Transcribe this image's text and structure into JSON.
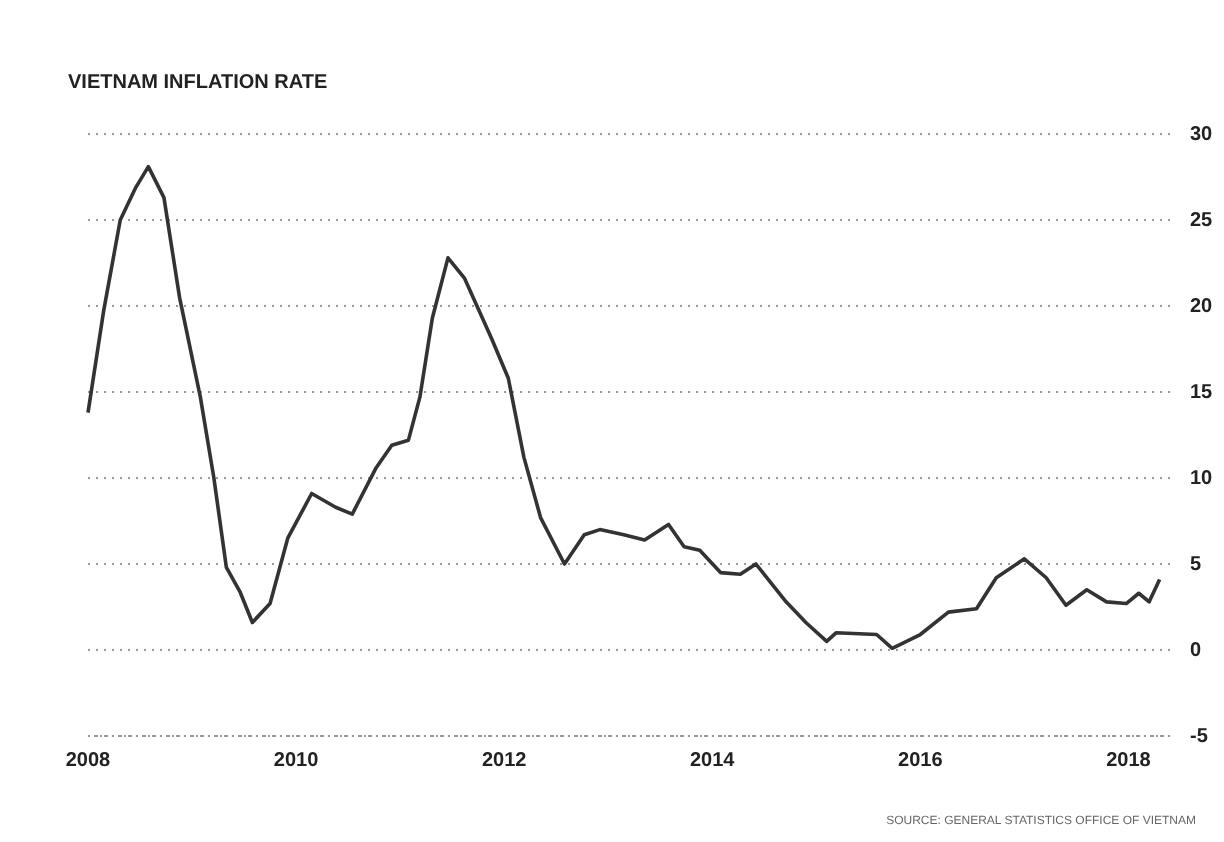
{
  "chart_data": {
    "type": "line",
    "title": "VIETNAM INFLATION RATE",
    "annotations": [
      "SOURCE: GENERAL STATISTICS OFFICE OF VIETNAM"
    ],
    "x": [
      2008.0,
      2008.15,
      2008.31,
      2008.46,
      2008.58,
      2008.73,
      2008.88,
      2009.08,
      2009.21,
      2009.33,
      2009.46,
      2009.58,
      2009.75,
      2009.92,
      2010.15,
      2010.38,
      2010.54,
      2010.77,
      2010.92,
      2011.08,
      2011.19,
      2011.31,
      2011.46,
      2011.62,
      2011.88,
      2012.04,
      2012.19,
      2012.35,
      2012.58,
      2012.77,
      2012.92,
      2013.15,
      2013.35,
      2013.58,
      2013.73,
      2013.88,
      2014.08,
      2014.27,
      2014.42,
      2014.71,
      2014.9,
      2015.1,
      2015.19,
      2015.58,
      2015.73,
      2016.0,
      2016.27,
      2016.54,
      2016.73,
      2017.0,
      2017.21,
      2017.4,
      2017.6,
      2017.79,
      2017.98,
      2018.1,
      2018.2,
      2018.3
    ],
    "series": [
      {
        "color": "#333333",
        "values": [
          13.8,
          19.7,
          25,
          26.9,
          28.1,
          26.3,
          20.5,
          14.7,
          10,
          4.8,
          3.4,
          1.6,
          2.7,
          6.5,
          9.1,
          8.3,
          7.9,
          10.6,
          11.9,
          12.2,
          14.7,
          19.3,
          22.8,
          21.6,
          18.1,
          15.8,
          11.2,
          7.7,
          5,
          6.7,
          7,
          6.7,
          6.4,
          7.3,
          6,
          5.8,
          4.5,
          4.4,
          5,
          2.8,
          1.6,
          0.5,
          1,
          0.9,
          0.1,
          0.9,
          2.2,
          2.4,
          4.2,
          5.3,
          4.2,
          2.6,
          3.5,
          2.8,
          2.7,
          3.3,
          2.8,
          4.1
        ]
      }
    ],
    "xlim": [
      2008,
      2018.4
    ],
    "xticks": [
      2008,
      2010,
      2012,
      2014,
      2016,
      2018
    ],
    "ylim": [
      -5,
      30
    ],
    "yticks": [
      -5,
      0,
      5,
      10,
      15,
      20,
      25,
      30
    ],
    "grid": "y",
    "marker": "none",
    "line_style": "solid"
  }
}
